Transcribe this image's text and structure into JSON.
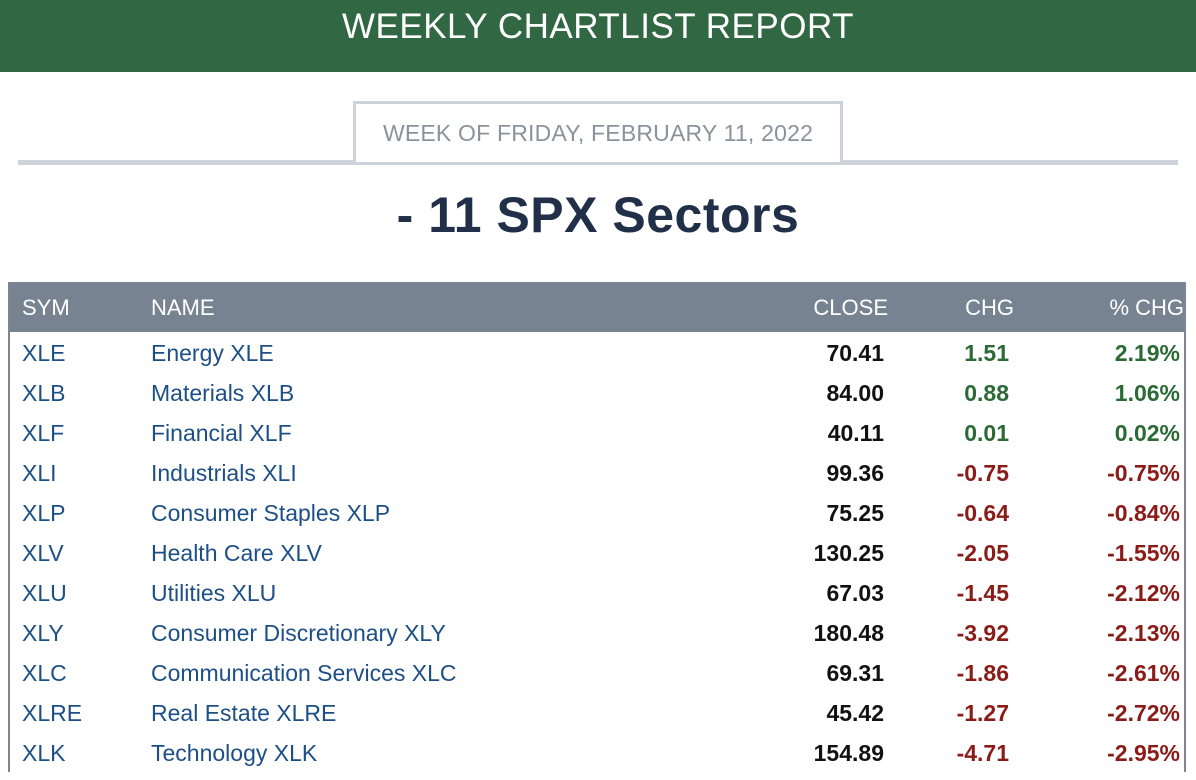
{
  "header": {
    "title": "WEEKLY CHARTLIST REPORT"
  },
  "week": {
    "label": "WEEK OF FRIDAY, FEBRUARY 11, 2022"
  },
  "section": {
    "title": "- 11 SPX Sectors"
  },
  "colors": {
    "banner": "#316843",
    "positive": "#2b6a34",
    "negative": "#8a1b17",
    "link": "#1d4f87",
    "table_header": "#788392"
  },
  "table": {
    "columns": [
      "SYM",
      "NAME",
      "CLOSE",
      "CHG",
      "% CHG"
    ],
    "rows": [
      {
        "sym": "XLE",
        "name": "Energy XLE",
        "close": "70.41",
        "chg": "1.51",
        "pct": "2.19%",
        "dir": "pos"
      },
      {
        "sym": "XLB",
        "name": "Materials XLB",
        "close": "84.00",
        "chg": "0.88",
        "pct": "1.06%",
        "dir": "pos"
      },
      {
        "sym": "XLF",
        "name": "Financial XLF",
        "close": "40.11",
        "chg": "0.01",
        "pct": "0.02%",
        "dir": "pos"
      },
      {
        "sym": "XLI",
        "name": "Industrials XLI",
        "close": "99.36",
        "chg": "-0.75",
        "pct": "-0.75%",
        "dir": "neg"
      },
      {
        "sym": "XLP",
        "name": "Consumer Staples XLP",
        "close": "75.25",
        "chg": "-0.64",
        "pct": "-0.84%",
        "dir": "neg"
      },
      {
        "sym": "XLV",
        "name": "Health Care XLV",
        "close": "130.25",
        "chg": "-2.05",
        "pct": "-1.55%",
        "dir": "neg"
      },
      {
        "sym": "XLU",
        "name": "Utilities XLU",
        "close": "67.03",
        "chg": "-1.45",
        "pct": "-2.12%",
        "dir": "neg"
      },
      {
        "sym": "XLY",
        "name": "Consumer Discretionary XLY",
        "close": "180.48",
        "chg": "-3.92",
        "pct": "-2.13%",
        "dir": "neg"
      },
      {
        "sym": "XLC",
        "name": "Communication Services XLC",
        "close": "69.31",
        "chg": "-1.86",
        "pct": "-2.61%",
        "dir": "neg"
      },
      {
        "sym": "XLRE",
        "name": "Real Estate XLRE",
        "close": "45.42",
        "chg": "-1.27",
        "pct": "-2.72%",
        "dir": "neg"
      },
      {
        "sym": "XLK",
        "name": "Technology XLK",
        "close": "154.89",
        "chg": "-4.71",
        "pct": "-2.95%",
        "dir": "neg"
      }
    ]
  }
}
